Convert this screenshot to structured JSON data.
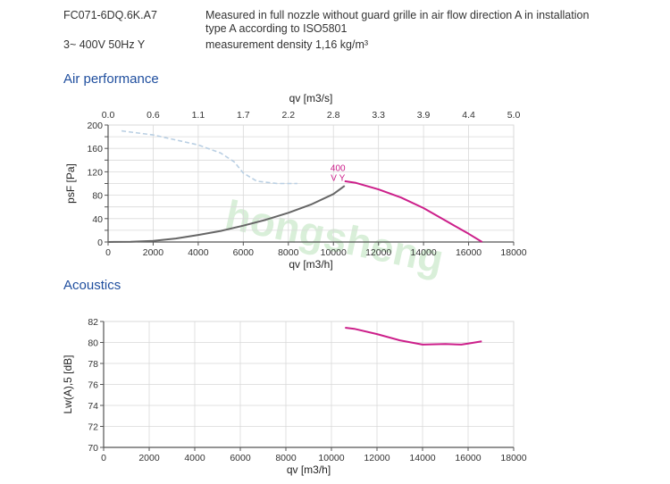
{
  "header": {
    "model": "FC071-6DQ.6K.A7",
    "supply": "3~ 400V 50Hz Y",
    "description_line1": "Measured in full nozzle without guard grille in air flow direction A in installation",
    "description_line2": "type A according to ISO5801",
    "density": "measurement density 1,16 kg/m³"
  },
  "sections": {
    "air_performance": "Air performance",
    "acoustics": "Acoustics"
  },
  "watermark": "hongsheng",
  "colors": {
    "axis": "#555555",
    "grid": "#d9d9d9",
    "operating_curve": "#cc1f8a",
    "system_curve": "#666666",
    "limit_curve": "#b9cfe3",
    "title": "#1f4e9e",
    "watermark": "#d9efd9"
  },
  "chart_data": [
    {
      "type": "line",
      "xlabel": "qv [m3/h]",
      "x2label": "qv [m3/s]",
      "ylabel": "psF [Pa]",
      "xlim": [
        0,
        18000
      ],
      "ylim": [
        0,
        200
      ],
      "xticks": [
        0,
        2000,
        4000,
        6000,
        8000,
        10000,
        12000,
        14000,
        16000,
        18000
      ],
      "x2ticks": [
        "0.0",
        "0.6",
        "1.1",
        "1.7",
        "2.2",
        "2.8",
        "3.3",
        "3.9",
        "4.4",
        "5.0"
      ],
      "yticks": [
        0,
        20,
        40,
        60,
        80,
        100,
        120,
        140,
        160,
        180,
        200
      ],
      "ytick_labels": [
        "0",
        "",
        "40",
        "",
        "80",
        "",
        "120",
        "",
        "160",
        "",
        "200"
      ],
      "grid": true,
      "annotation": {
        "line1": "400",
        "line2": "V Y",
        "x": 10200,
        "y": 121
      },
      "series": [
        {
          "role": "system",
          "x": [
            0,
            1000,
            2000,
            3000,
            4000,
            5000,
            6000,
            7000,
            8000,
            9000,
            10000,
            10500
          ],
          "y": [
            0,
            0.5,
            2,
            6,
            12,
            19,
            28,
            38,
            50,
            64,
            82,
            96
          ]
        },
        {
          "role": "operating",
          "x": [
            10500,
            11000,
            12000,
            13000,
            14000,
            15000,
            16000,
            16600
          ],
          "y": [
            104,
            101,
            90,
            76,
            58,
            36,
            14,
            0
          ]
        },
        {
          "role": "limit",
          "x": [
            600,
            2000,
            4000,
            5000,
            5600,
            6000,
            6600,
            7500,
            8400
          ],
          "y": [
            190,
            183,
            166,
            152,
            137,
            118,
            104,
            100,
            100
          ]
        }
      ]
    },
    {
      "type": "line",
      "xlabel": "qv [m3/h]",
      "ylabel": "Lw(A),5 [dB]",
      "xlim": [
        0,
        18000
      ],
      "ylim": [
        70,
        82
      ],
      "xticks": [
        0,
        2000,
        4000,
        6000,
        8000,
        10000,
        12000,
        14000,
        16000,
        18000
      ],
      "yticks": [
        70,
        72,
        74,
        76,
        78,
        80,
        82
      ],
      "grid": true,
      "series": [
        {
          "role": "operating",
          "x": [
            10600,
            11000,
            12000,
            13000,
            14000,
            15000,
            15700,
            16000,
            16600
          ],
          "y": [
            81.4,
            81.3,
            80.8,
            80.2,
            79.8,
            79.85,
            79.8,
            79.9,
            80.1
          ]
        }
      ]
    }
  ]
}
